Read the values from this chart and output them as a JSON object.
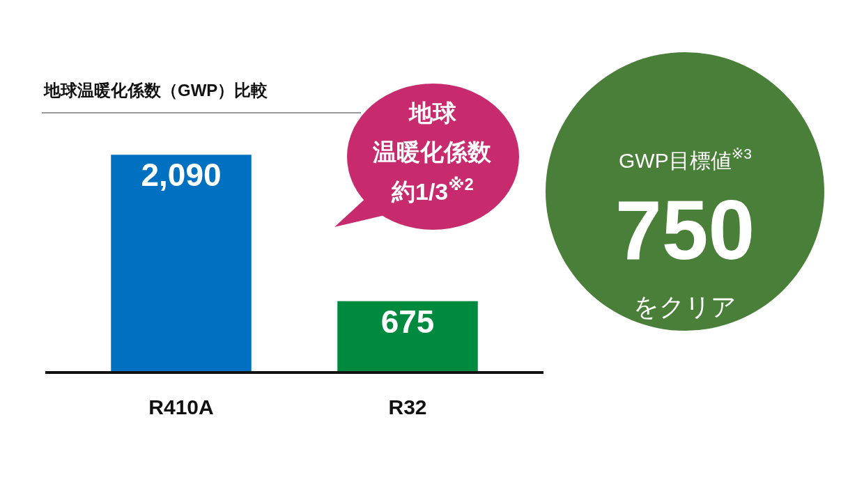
{
  "chart_data": {
    "type": "bar",
    "title": "地球温暖化係数（GWP）比較",
    "categories": [
      "R410A",
      "R32"
    ],
    "values": [
      2090,
      675
    ],
    "colors": [
      "#0070c0",
      "#008a40"
    ],
    "value_labels": [
      "2,090",
      "675"
    ],
    "tick_labels": "x",
    "annotations": [
      "地球",
      "温暖化係数",
      "約1/3$^{※2}$",
      "GWP目標値$^{※3}$",
      "750",
      "をクリア"
    ]
  }
}
